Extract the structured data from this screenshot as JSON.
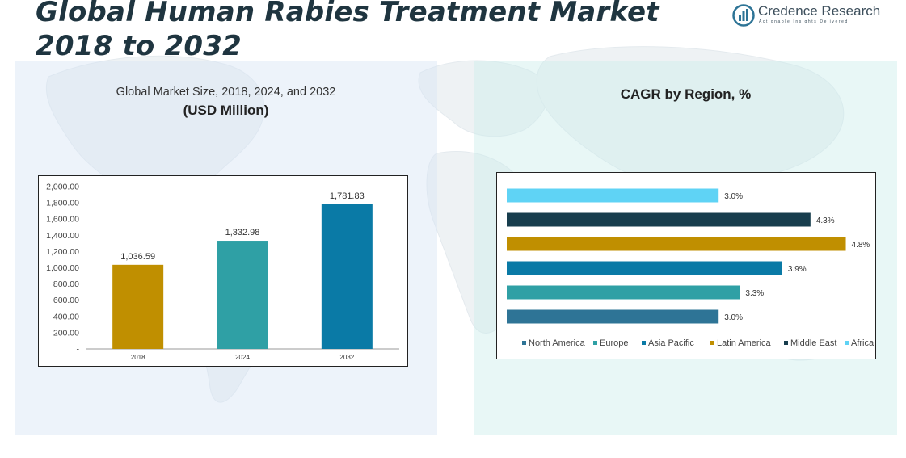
{
  "header": {
    "title_line1": "Global Human Rabies Treatment Market",
    "title_line2": "2018 to 2032"
  },
  "logo": {
    "brand": "Credence Research",
    "tagline": "Actionable Insights Delivered"
  },
  "colors": {
    "title": "#1f3540",
    "left_panel": "#dbe7f5",
    "right_panel": "#d4f0ee"
  },
  "chart_data": [
    {
      "type": "bar",
      "title": "Global Market Size, 2018, 2024, and 2032",
      "subtitle": "(USD Million)",
      "categories": [
        "2018",
        "2024",
        "2032"
      ],
      "values": [
        1036.59,
        1332.98,
        1781.83
      ],
      "value_labels": [
        "1,036.59",
        "1,332.98",
        "1,781.83"
      ],
      "colors": [
        "#c08f00",
        "#2fa0a5",
        "#0a7aa6"
      ],
      "ylim": [
        0,
        2000
      ],
      "yticks": [
        0,
        200,
        400,
        600,
        800,
        1000,
        1200,
        1400,
        1600,
        1800,
        2000
      ],
      "ytick_labels": [
        "-",
        "200.00",
        "400.00",
        "600.00",
        "800.00",
        "1,000.00",
        "1,200.00",
        "1,400.00",
        "1,600.00",
        "1,800.00",
        "2,000.00"
      ],
      "xlabel": "",
      "ylabel": ""
    },
    {
      "type": "bar",
      "orientation": "horizontal",
      "title": "CAGR by Region, %",
      "categories": [
        "North America",
        "Europe",
        "Asia Pacific",
        "Latin America",
        "Middle East",
        "Africa"
      ],
      "values": [
        3.0,
        3.3,
        3.9,
        4.8,
        4.3,
        3.0
      ],
      "value_labels": [
        "3.0%",
        "3.3%",
        "3.9%",
        "4.8%",
        "4.3%",
        "3.0%"
      ],
      "colors": [
        "#2e7496",
        "#2fa0a5",
        "#0a7aa6",
        "#c08f00",
        "#173d4d",
        "#5fd3f5"
      ],
      "legend": [
        "North America",
        "Europe",
        "Asia Pacific",
        "Latin America",
        "Middle East",
        "Africa"
      ],
      "legend_position": "bottom",
      "xlim": [
        0,
        5
      ]
    }
  ]
}
